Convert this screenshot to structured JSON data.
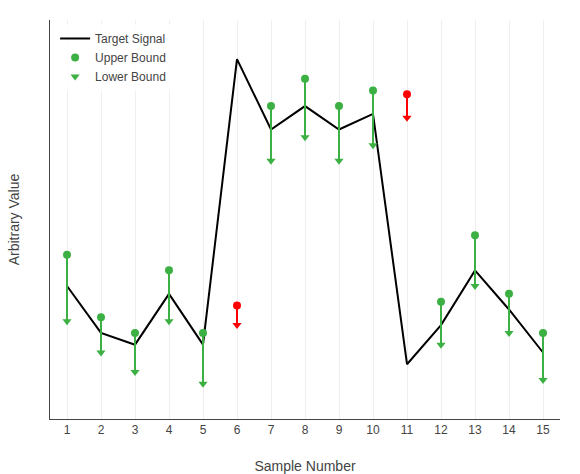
{
  "chart_data": {
    "type": "line",
    "xlabel": "Sample Number",
    "ylabel": "Arbitrary Value",
    "x": [
      1,
      2,
      3,
      4,
      5,
      6,
      7,
      8,
      9,
      10,
      11,
      12,
      13,
      14,
      15
    ],
    "series": [
      {
        "name": "Target Signal",
        "type": "line",
        "color": "#000000",
        "line_style": "solid",
        "values": [
          0.42,
          0.3,
          0.27,
          0.4,
          0.27,
          1.0,
          0.82,
          0.88,
          0.82,
          0.86,
          0.22,
          0.32,
          0.46,
          0.36,
          0.25
        ]
      },
      {
        "name": "Upper Bound",
        "type": "scatter",
        "marker": "circle",
        "color": "#3cb043",
        "values": [
          0.5,
          0.34,
          0.3,
          0.46,
          0.3,
          null,
          0.88,
          0.95,
          0.88,
          0.92,
          null,
          0.38,
          0.55,
          0.4,
          0.3
        ]
      },
      {
        "name": "Lower Bound",
        "type": "scatter",
        "marker": "triangle-down",
        "color": "#3cb043",
        "values": [
          0.33,
          0.25,
          0.2,
          0.33,
          0.17,
          null,
          0.74,
          0.8,
          0.74,
          0.78,
          null,
          0.27,
          0.42,
          0.3,
          0.18
        ]
      },
      {
        "type": "scatter",
        "marker": "circle",
        "color": "#FF0000",
        "values": [
          null,
          null,
          null,
          null,
          null,
          0.37,
          null,
          null,
          null,
          null,
          0.91,
          null,
          null,
          null,
          null
        ]
      },
      {
        "type": "scatter",
        "marker": "triangle-down",
        "color": "#FF0000",
        "values": [
          null,
          null,
          null,
          null,
          null,
          0.32,
          null,
          null,
          null,
          null,
          0.85,
          null,
          null,
          null,
          null
        ]
      }
    ],
    "xlim": [
      0.5,
      15.5
    ],
    "xticks": [
      1,
      2,
      3,
      4,
      5,
      6,
      7,
      8,
      9,
      10,
      11,
      12,
      13,
      14,
      15
    ],
    "ylim": [
      0.08,
      1.1
    ],
    "tick_labels": "x",
    "grid": "x",
    "legend": "upper left"
  }
}
